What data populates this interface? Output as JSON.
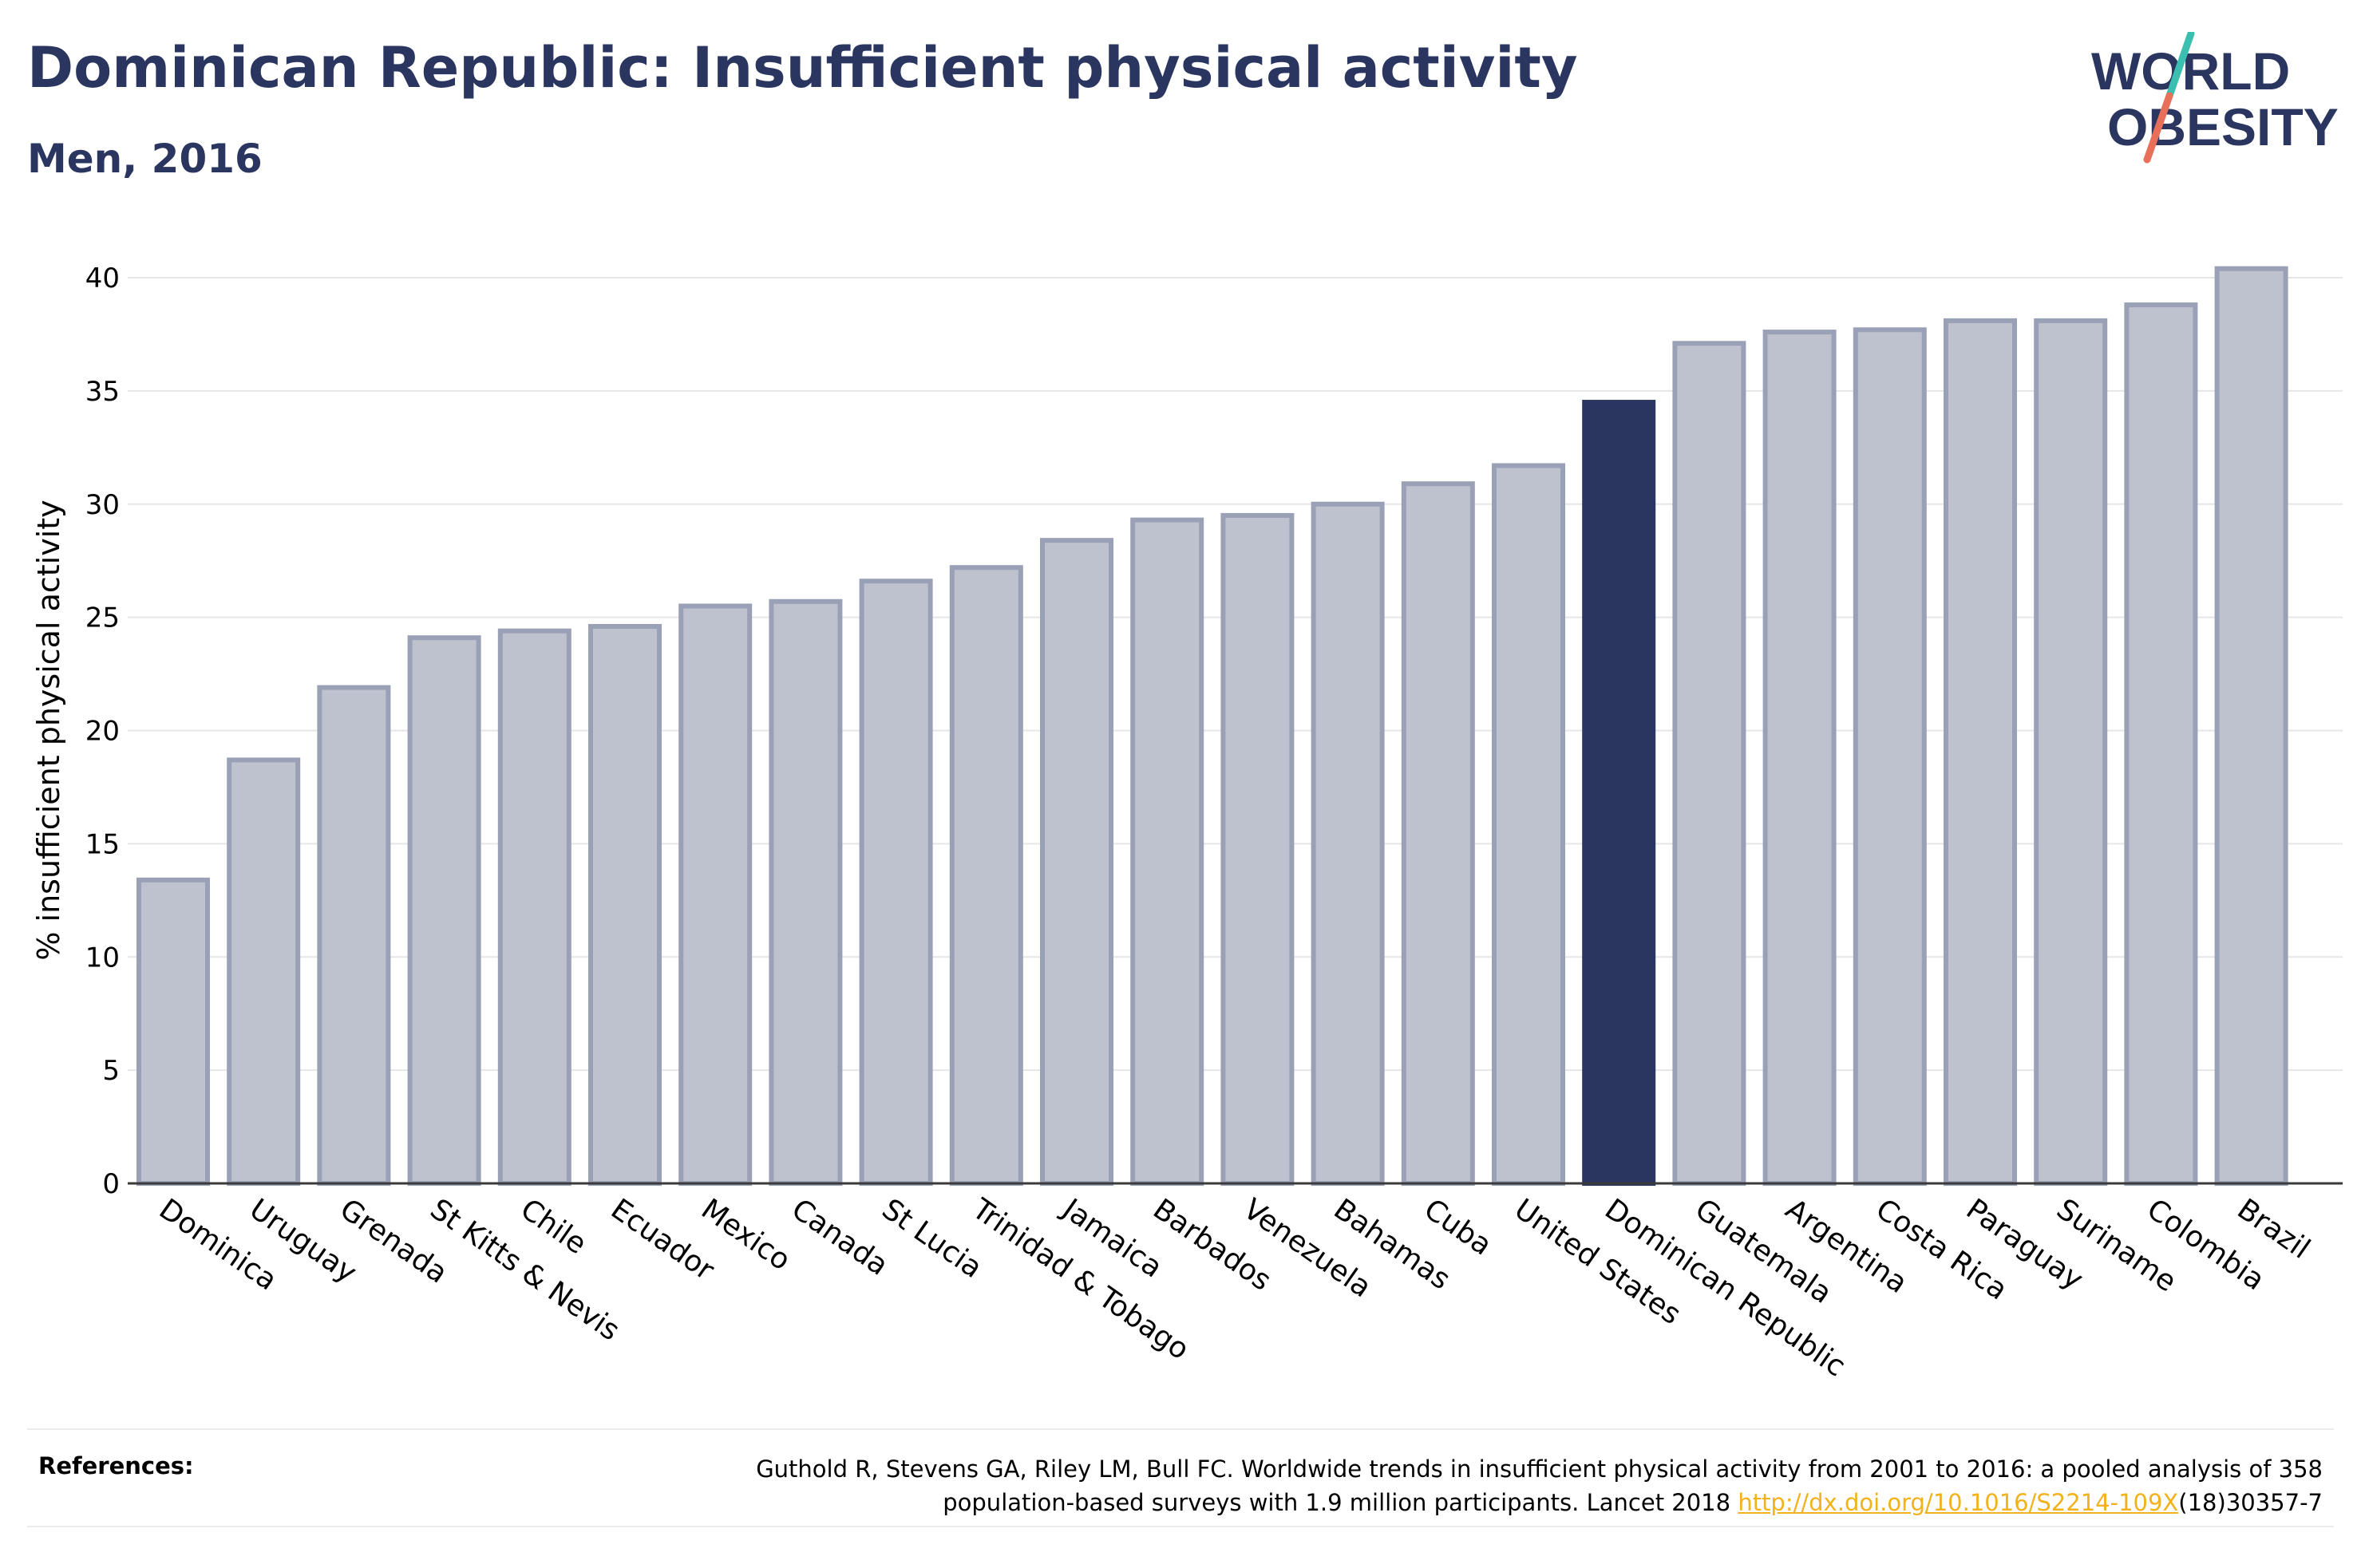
{
  "header": {
    "title": "Dominican Republic: Insufficient physical activity",
    "subtitle": "Men, 2016"
  },
  "logo": {
    "line1": "WORLD",
    "line2": "OBESITY",
    "name": "world-obesity-logo"
  },
  "colors": {
    "bar_default": "#bec1ce",
    "bar_default_stroke": "#9aa0b6",
    "bar_highlight": "#2a3560",
    "axis_text": "#000000",
    "grid": "#e6e6e6",
    "logo_teal": "#3bbfb0",
    "logo_coral": "#e8705a"
  },
  "chart_data": {
    "type": "bar",
    "ylabel": "% insufficient physical activity",
    "xlabel": "",
    "ylim": [
      0,
      40
    ],
    "yticks": [
      0,
      5,
      10,
      15,
      20,
      25,
      30,
      35,
      40
    ],
    "grid": true,
    "highlight": "Dominican Republic",
    "categories": [
      "Dominica",
      "Uruguay",
      "Grenada",
      "St Kitts & Nevis",
      "Chile",
      "Ecuador",
      "Mexico",
      "Canada",
      "St Lucia",
      "Trinidad & Tobago",
      "Jamaica",
      "Barbados",
      "Venezuela",
      "Bahamas",
      "Cuba",
      "United States",
      "Dominican Republic",
      "Guatemala",
      "Argentina",
      "Costa Rica",
      "Paraguay",
      "Suriname",
      "Colombia",
      "Brazil"
    ],
    "values": [
      13.4,
      18.7,
      21.9,
      24.1,
      24.4,
      24.6,
      25.5,
      25.7,
      26.6,
      27.2,
      28.4,
      29.3,
      29.5,
      30.0,
      30.9,
      31.7,
      34.5,
      37.1,
      37.6,
      37.7,
      38.1,
      38.1,
      38.8,
      40.4
    ]
  },
  "references": {
    "label": "References:",
    "line1": "Guthold R, Stevens GA, Riley LM, Bull FC. Worldwide trends in insufficient physical activity from 2001 to 2016: a pooled analysis of 358",
    "line2_before": "population-based surveys with 1.9 million participants. Lancet 2018 ",
    "link": "http://dx.doi.org/10.1016/S2214-109X",
    "line2_after": "(18)30357-7"
  }
}
